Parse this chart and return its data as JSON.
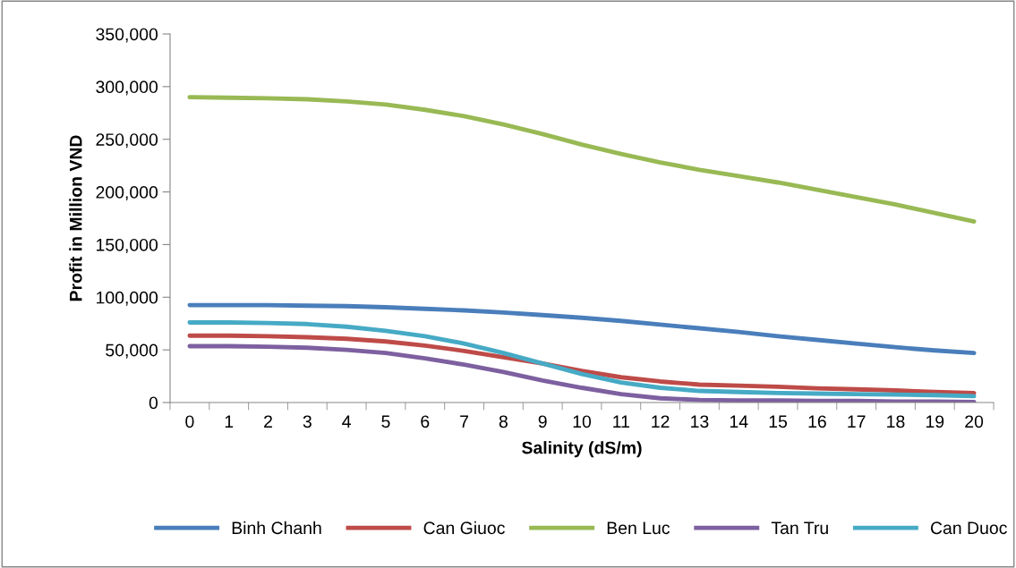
{
  "chart_data": {
    "type": "line",
    "xlabel": "Salinity (dS/m)",
    "ylabel": "Profit in Million VND",
    "categories": [
      "0",
      "1",
      "2",
      "3",
      "4",
      "5",
      "6",
      "7",
      "8",
      "9",
      "10",
      "11",
      "12",
      "13",
      "14",
      "15",
      "16",
      "17",
      "18",
      "19",
      "20"
    ],
    "ylim": [
      0,
      350000
    ],
    "yticks": [
      {
        "value": 0,
        "label": "0"
      },
      {
        "value": 50000,
        "label": "50,000"
      },
      {
        "value": 100000,
        "label": "100,000"
      },
      {
        "value": 150000,
        "label": "150,000"
      },
      {
        "value": 200000,
        "label": "200,000"
      },
      {
        "value": 250000,
        "label": "250,000"
      },
      {
        "value": 300000,
        "label": "300,000"
      },
      {
        "value": 350000,
        "label": "350,000"
      }
    ],
    "grid": false,
    "legend": "bottom",
    "marker": "none",
    "line_style": "solid",
    "series": [
      {
        "name": "Binh Chanh",
        "color": "#4a7ebb",
        "values": [
          92500,
          92500,
          92500,
          92000,
          91500,
          90500,
          89000,
          87500,
          85500,
          83000,
          80500,
          77500,
          74000,
          70500,
          67000,
          63000,
          59500,
          56000,
          52500,
          49500,
          47000
        ]
      },
      {
        "name": "Can Giuoc",
        "color": "#be4b48",
        "values": [
          63500,
          63500,
          63000,
          62000,
          60500,
          58000,
          54000,
          49000,
          43000,
          37000,
          30000,
          24000,
          20000,
          17000,
          16000,
          15000,
          13500,
          12500,
          11500,
          10000,
          9000
        ]
      },
      {
        "name": "Ben Luc",
        "color": "#98b954",
        "values": [
          290000,
          289500,
          289000,
          288000,
          286000,
          283000,
          278000,
          272000,
          264000,
          255000,
          245000,
          236000,
          228000,
          221000,
          215000,
          209000,
          202000,
          195000,
          188000,
          180000,
          172000
        ]
      },
      {
        "name": "Tan Tru",
        "color": "#7d60a0",
        "values": [
          53500,
          53500,
          53000,
          52000,
          50000,
          47000,
          42000,
          36000,
          29000,
          21000,
          14000,
          8000,
          4000,
          2500,
          2000,
          2000,
          1500,
          1500,
          1000,
          1000,
          500
        ]
      },
      {
        "name": "Can Duoc",
        "color": "#46aac5",
        "values": [
          76000,
          76000,
          75500,
          74500,
          72000,
          68000,
          63000,
          56000,
          47000,
          37000,
          27000,
          19000,
          14000,
          11000,
          10000,
          9000,
          8500,
          8000,
          7500,
          7000,
          6000
        ]
      }
    ]
  }
}
